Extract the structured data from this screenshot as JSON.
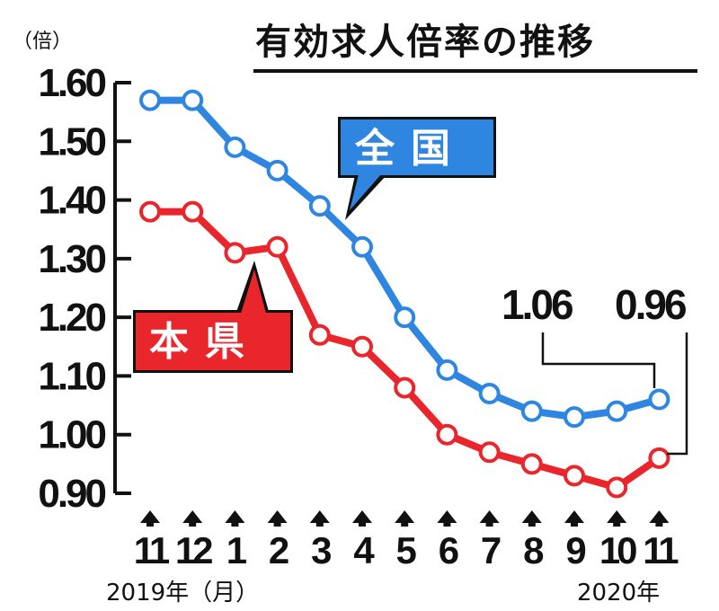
{
  "chart_data": {
    "type": "line",
    "title": "有効求人倍率の推移",
    "unit": "（倍）",
    "categories": [
      "11",
      "12",
      "1",
      "2",
      "3",
      "4",
      "5",
      "6",
      "7",
      "8",
      "9",
      "10",
      "11"
    ],
    "x_year_start": "2019年（月）",
    "x_year_end": "2020年",
    "ylim": [
      0.9,
      1.6
    ],
    "yticks": [
      "0.90",
      "1.00",
      "1.10",
      "1.20",
      "1.30",
      "1.40",
      "1.50",
      "1.60"
    ],
    "series": [
      {
        "name": "全国",
        "color": "#2f86e0",
        "values": [
          1.57,
          1.57,
          1.49,
          1.45,
          1.39,
          1.32,
          1.2,
          1.11,
          1.07,
          1.04,
          1.03,
          1.04,
          1.06
        ]
      },
      {
        "name": "本県",
        "color": "#e8262b",
        "values": [
          1.38,
          1.38,
          1.31,
          1.32,
          1.17,
          1.15,
          1.08,
          1.0,
          0.97,
          0.95,
          0.93,
          0.91,
          0.96
        ]
      }
    ],
    "annotations": {
      "national_latest": "1.06",
      "prefecture_latest": "0.96"
    },
    "grid": false
  }
}
